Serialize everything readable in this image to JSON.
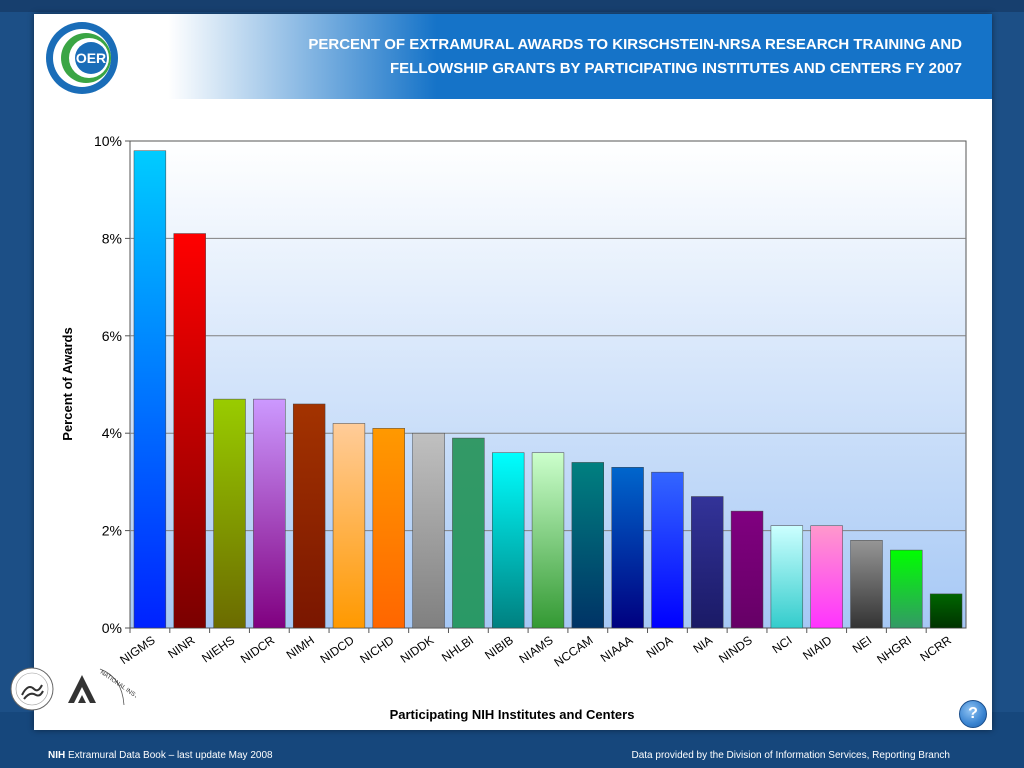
{
  "header": {
    "title_line1": "PERCENT OF EXTRAMURAL AWARDS TO KIRSCHSTEIN-NRSA RESEARCH TRAINING AND",
    "title_line2": "FELLOWSHIP GRANTS BY PARTICIPATING INSTITUTES AND CENTERS FY 2007",
    "logo_text": "OER"
  },
  "footer": {
    "left_bold": "NIH",
    "left_text": " Extramural Data Book – last update May 2008",
    "right_text": "Data provided by the Division of Information Services, Reporting Branch",
    "help_label": "?",
    "nih_logo_text": "NATIONAL INSTITUTES OF HEALTH"
  },
  "chart_data": {
    "type": "bar",
    "title": "",
    "xlabel": "Participating NIH Institutes and Centers",
    "ylabel": "Percent of Awards",
    "ylim": [
      0,
      10
    ],
    "yticks": [
      0,
      2,
      4,
      6,
      8,
      10
    ],
    "ytick_labels": [
      "0%",
      "2%",
      "4%",
      "6%",
      "8%",
      "10%"
    ],
    "grid": true,
    "categories": [
      "NIGMS",
      "NINR",
      "NIEHS",
      "NIDCR",
      "NIMH",
      "NIDCD",
      "NICHD",
      "NIDDK",
      "NHLBI",
      "NIBIB",
      "NIAMS",
      "NCCAM",
      "NIAAA",
      "NIDA",
      "NIA",
      "NINDS",
      "NCI",
      "NIAID",
      "NEI",
      "NHGRI",
      "NCRR"
    ],
    "values": [
      9.8,
      8.1,
      4.7,
      4.7,
      4.6,
      4.2,
      4.1,
      4.0,
      3.9,
      3.6,
      3.6,
      3.4,
      3.3,
      3.2,
      2.7,
      2.4,
      2.1,
      2.1,
      1.8,
      1.6,
      0.7
    ],
    "bar_colors": [
      [
        "#00ccff",
        "#0022ff"
      ],
      [
        "#ff0000",
        "#7a0000"
      ],
      [
        "#99cc00",
        "#6b6b00"
      ],
      [
        "#cc99ff",
        "#800080"
      ],
      [
        "#a33300",
        "#7a1600"
      ],
      [
        "#ffcc99",
        "#ff9900"
      ],
      [
        "#ff9900",
        "#ff6600"
      ],
      [
        "#c0c0c0",
        "#808080"
      ],
      [
        "#339966",
        "#2a9966"
      ],
      [
        "#00ffff",
        "#008080"
      ],
      [
        "#ccffcc",
        "#339933"
      ],
      [
        "#008080",
        "#003366"
      ],
      [
        "#0066cc",
        "#000080"
      ],
      [
        "#3366ff",
        "#0000ff"
      ],
      [
        "#333399",
        "#1a1a66"
      ],
      [
        "#800080",
        "#660066"
      ],
      [
        "#ccffff",
        "#33cccc"
      ],
      [
        "#ff99cc",
        "#ff33ff"
      ],
      [
        "#969696",
        "#333333"
      ],
      [
        "#00ff00",
        "#339966"
      ],
      [
        "#006600",
        "#003300"
      ]
    ],
    "plot_background": [
      "#ffffff",
      "#a6c8f5"
    ]
  }
}
